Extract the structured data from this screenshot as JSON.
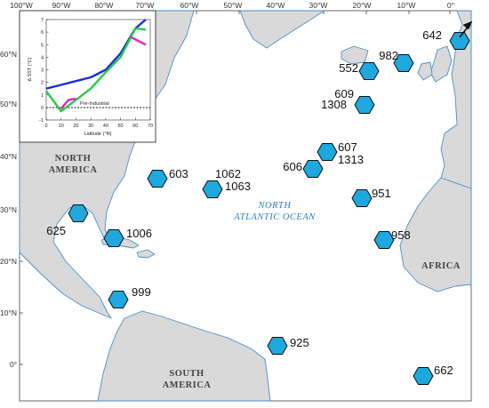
{
  "map": {
    "colors": {
      "ocean": "#ffffff",
      "land": "#d9d9d9",
      "coast": "#4a90c8",
      "site_fill": "#1fa8e0",
      "site_stroke": "#111111"
    },
    "longitude_labels": [
      "100°W",
      "90°W",
      "80°W",
      "70°W",
      "60°W",
      "50°W",
      "40°W",
      "30°W",
      "20°W",
      "10°W",
      "0°"
    ],
    "latitude_labels": [
      "60°N",
      "50°N",
      "40°N",
      "30°N",
      "20°N",
      "10°N",
      "0°"
    ],
    "region_labels": {
      "north_america_line1": "NORTH",
      "north_america_line2": "AMERICA",
      "south_america_line1": "SOUTH",
      "south_america_line2": "AMERICA",
      "africa": "AFRICA",
      "ocean_line1": "NORTH",
      "ocean_line2": "ATLANTIC OCEAN"
    },
    "sites": [
      {
        "id": "642"
      },
      {
        "id": "982"
      },
      {
        "id": "552"
      },
      {
        "id": "609"
      },
      {
        "id": "1308"
      },
      {
        "id": "607"
      },
      {
        "id": "1313"
      },
      {
        "id": "606"
      },
      {
        "id": "603"
      },
      {
        "id": "1062"
      },
      {
        "id": "1063"
      },
      {
        "id": "951"
      },
      {
        "id": "625"
      },
      {
        "id": "1006"
      },
      {
        "id": "958"
      },
      {
        "id": "999"
      },
      {
        "id": "925"
      },
      {
        "id": "662"
      }
    ],
    "arrow_icon": "north-east-arrow-icon"
  },
  "inset": {
    "ylabel": "Δ SST (°C)",
    "xlabel": "Latitude (°N)",
    "baseline_label": "Pre-Industrial",
    "x_ticks": [
      "0",
      "10",
      "20",
      "30",
      "40",
      "50",
      "60",
      "70"
    ],
    "y_ticks": [
      "-1",
      "0",
      "1",
      "2",
      "3",
      "4",
      "5",
      "6",
      "7"
    ]
  },
  "chart_data": {
    "type": "line",
    "xlabel": "Latitude (°N)",
    "ylabel": "Δ SST (°C)",
    "xlim": [
      0,
      70
    ],
    "ylim": [
      -1,
      7
    ],
    "grid": false,
    "series": [
      {
        "color": "#1a2fd6",
        "x": [
          0,
          10,
          20,
          30,
          40,
          50,
          60,
          67
        ],
        "y": [
          1.5,
          1.8,
          2.1,
          2.4,
          3.0,
          4.3,
          6.3,
          7.0
        ]
      },
      {
        "color": "#27c94a",
        "x": [
          0,
          10,
          20,
          30,
          40,
          50,
          60,
          67
        ],
        "y": [
          1.3,
          -0.3,
          0.6,
          1.5,
          2.8,
          4.0,
          6.3,
          6.2
        ]
      },
      {
        "color": "#e820b4",
        "x": [
          10,
          15,
          20
        ],
        "y": [
          -0.1,
          0.6,
          0.7
        ]
      },
      {
        "color": "#e820b4",
        "x": [
          57,
          67
        ],
        "y": [
          5.6,
          5.0
        ]
      }
    ],
    "baseline": 0
  }
}
